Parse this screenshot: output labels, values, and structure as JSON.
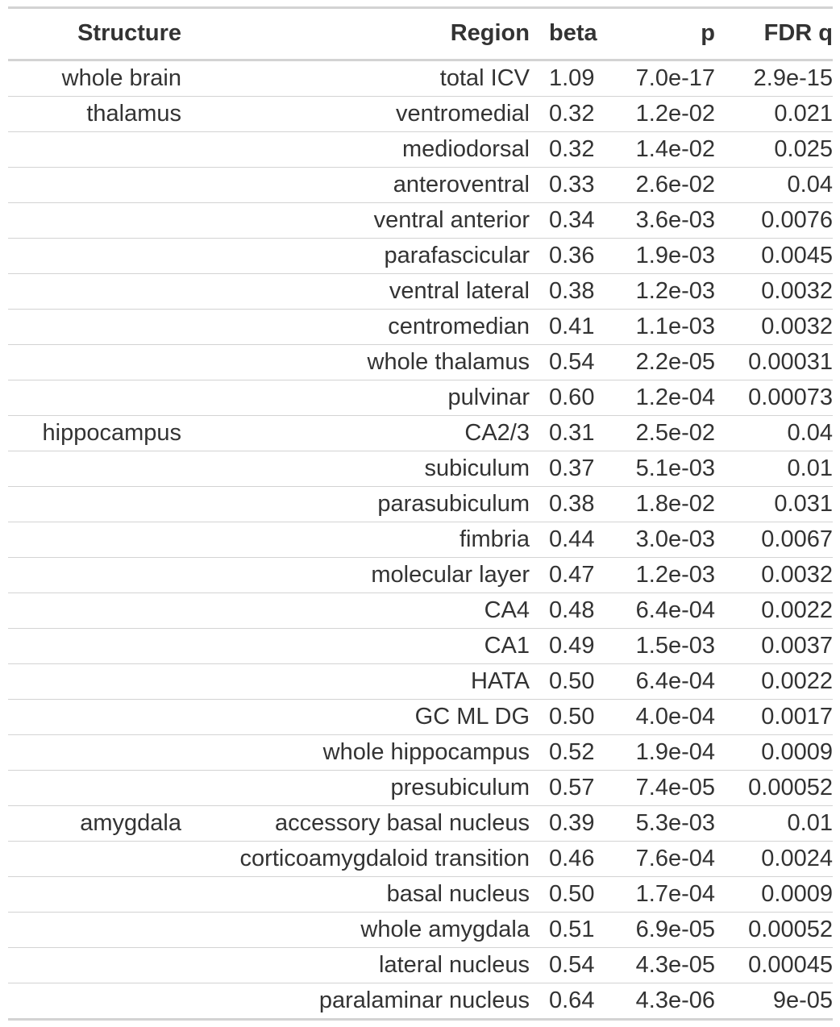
{
  "table": {
    "headers": {
      "structure": "Structure",
      "region": "Region",
      "beta": "beta",
      "p": "p",
      "fdr": "FDR q"
    },
    "rows": [
      {
        "structure": "whole brain",
        "region": "total ICV",
        "beta": "1.09",
        "p": "7.0e-17",
        "fdr": "2.9e-15"
      },
      {
        "structure": "thalamus",
        "region": "ventromedial",
        "beta": "0.32",
        "p": "1.2e-02",
        "fdr": "0.021"
      },
      {
        "structure": "",
        "region": "mediodorsal",
        "beta": "0.32",
        "p": "1.4e-02",
        "fdr": "0.025"
      },
      {
        "structure": "",
        "region": "anteroventral",
        "beta": "0.33",
        "p": "2.6e-02",
        "fdr": "0.04"
      },
      {
        "structure": "",
        "region": "ventral anterior",
        "beta": "0.34",
        "p": "3.6e-03",
        "fdr": "0.0076"
      },
      {
        "structure": "",
        "region": "parafascicular",
        "beta": "0.36",
        "p": "1.9e-03",
        "fdr": "0.0045"
      },
      {
        "structure": "",
        "region": "ventral lateral",
        "beta": "0.38",
        "p": "1.2e-03",
        "fdr": "0.0032"
      },
      {
        "structure": "",
        "region": "centromedian",
        "beta": "0.41",
        "p": "1.1e-03",
        "fdr": "0.0032"
      },
      {
        "structure": "",
        "region": "whole thalamus",
        "beta": "0.54",
        "p": "2.2e-05",
        "fdr": "0.00031"
      },
      {
        "structure": "",
        "region": "pulvinar",
        "beta": "0.60",
        "p": "1.2e-04",
        "fdr": "0.00073"
      },
      {
        "structure": "hippocampus",
        "region": "CA2/3",
        "beta": "0.31",
        "p": "2.5e-02",
        "fdr": "0.04"
      },
      {
        "structure": "",
        "region": "subiculum",
        "beta": "0.37",
        "p": "5.1e-03",
        "fdr": "0.01"
      },
      {
        "structure": "",
        "region": "parasubiculum",
        "beta": "0.38",
        "p": "1.8e-02",
        "fdr": "0.031"
      },
      {
        "structure": "",
        "region": "fimbria",
        "beta": "0.44",
        "p": "3.0e-03",
        "fdr": "0.0067"
      },
      {
        "structure": "",
        "region": "molecular layer",
        "beta": "0.47",
        "p": "1.2e-03",
        "fdr": "0.0032"
      },
      {
        "structure": "",
        "region": "CA4",
        "beta": "0.48",
        "p": "6.4e-04",
        "fdr": "0.0022"
      },
      {
        "structure": "",
        "region": "CA1",
        "beta": "0.49",
        "p": "1.5e-03",
        "fdr": "0.0037"
      },
      {
        "structure": "",
        "region": "HATA",
        "beta": "0.50",
        "p": "6.4e-04",
        "fdr": "0.0022"
      },
      {
        "structure": "",
        "region": "GC ML DG",
        "beta": "0.50",
        "p": "4.0e-04",
        "fdr": "0.0017"
      },
      {
        "structure": "",
        "region": "whole hippocampus",
        "beta": "0.52",
        "p": "1.9e-04",
        "fdr": "0.0009"
      },
      {
        "structure": "",
        "region": "presubiculum",
        "beta": "0.57",
        "p": "7.4e-05",
        "fdr": "0.00052"
      },
      {
        "structure": "amygdala",
        "region": "accessory basal nucleus",
        "beta": "0.39",
        "p": "5.3e-03",
        "fdr": "0.01"
      },
      {
        "structure": "",
        "region": "corticoamygdaloid transition",
        "beta": "0.46",
        "p": "7.6e-04",
        "fdr": "0.0024"
      },
      {
        "structure": "",
        "region": "basal nucleus",
        "beta": "0.50",
        "p": "1.7e-04",
        "fdr": "0.0009"
      },
      {
        "structure": "",
        "region": "whole amygdala",
        "beta": "0.51",
        "p": "6.9e-05",
        "fdr": "0.00052"
      },
      {
        "structure": "",
        "region": "lateral nucleus",
        "beta": "0.54",
        "p": "4.3e-05",
        "fdr": "0.00045"
      },
      {
        "structure": "",
        "region": "paralaminar nucleus",
        "beta": "0.64",
        "p": "4.3e-06",
        "fdr": "9e-05"
      }
    ]
  }
}
